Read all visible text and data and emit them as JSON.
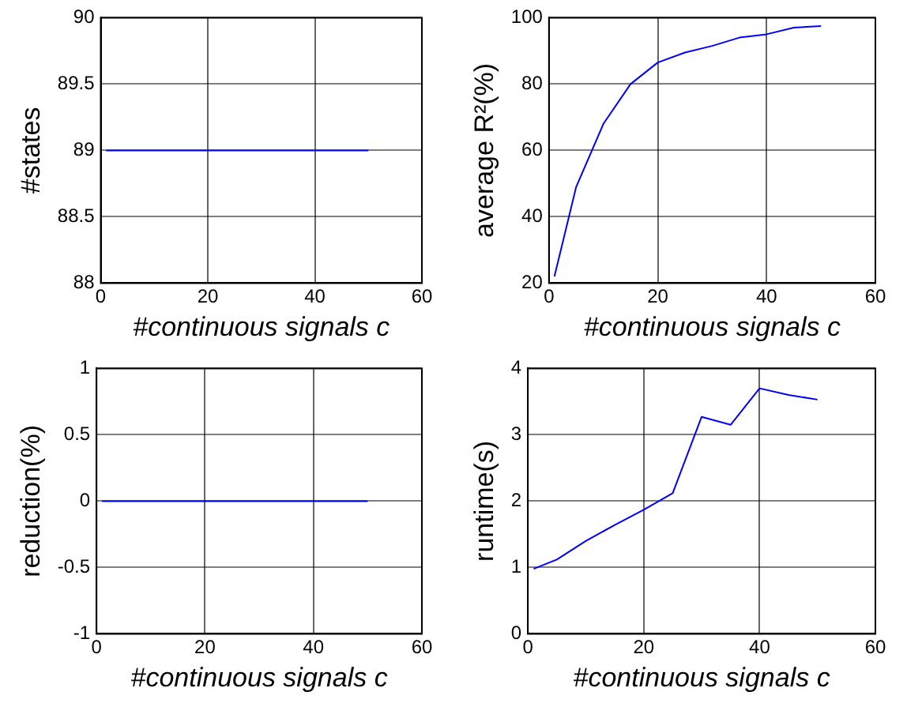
{
  "chart_data": [
    {
      "type": "line",
      "xlabel": "#continuous signals c",
      "ylabel": "#states",
      "x": [
        1,
        5,
        10,
        15,
        20,
        25,
        30,
        35,
        40,
        45,
        50
      ],
      "series": [
        {
          "color": "#0000ff",
          "values": [
            89,
            89,
            89,
            89,
            89,
            89,
            89,
            89,
            89,
            89,
            89
          ]
        }
      ],
      "xlim": [
        0,
        60
      ],
      "xticks": [
        0,
        20,
        40,
        60
      ],
      "ylim": [
        88,
        90
      ],
      "yticks": [
        88,
        88.5,
        89,
        89.5,
        90
      ],
      "grid": true,
      "legend": false
    },
    {
      "type": "line",
      "xlabel": "#continuous signals c",
      "ylabel": "average R²(%)",
      "x": [
        1,
        5,
        10,
        15,
        20,
        25,
        30,
        35,
        40,
        45,
        50
      ],
      "series": [
        {
          "color": "#0000ff",
          "values": [
            22,
            49,
            68,
            80,
            86.5,
            89.5,
            91.5,
            94,
            95,
            97,
            97.5
          ]
        }
      ],
      "xlim": [
        0,
        60
      ],
      "xticks": [
        0,
        20,
        40,
        60
      ],
      "ylim": [
        20,
        100
      ],
      "yticks": [
        20,
        40,
        60,
        80,
        100
      ],
      "grid": true,
      "legend": false
    },
    {
      "type": "line",
      "xlabel": "#continuous signals c",
      "ylabel": "reduction(%)",
      "x": [
        1,
        5,
        10,
        15,
        20,
        25,
        30,
        35,
        40,
        45,
        50
      ],
      "series": [
        {
          "color": "#0000ff",
          "values": [
            0,
            0,
            0,
            0,
            0,
            0,
            0,
            0,
            0,
            0,
            0
          ]
        }
      ],
      "xlim": [
        0,
        60
      ],
      "xticks": [
        0,
        20,
        40,
        60
      ],
      "ylim": [
        -1,
        1
      ],
      "yticks": [
        -1,
        -0.5,
        0,
        0.5,
        1
      ],
      "grid": true,
      "legend": false
    },
    {
      "type": "line",
      "xlabel": "#continuous signals c",
      "ylabel": "runtime(s)",
      "x": [
        1,
        5,
        10,
        15,
        20,
        25,
        30,
        35,
        40,
        45,
        50
      ],
      "series": [
        {
          "color": "#0000ff",
          "values": [
            0.98,
            1.12,
            1.4,
            1.64,
            1.87,
            2.12,
            3.27,
            3.15,
            3.7,
            3.6,
            3.53
          ]
        }
      ],
      "xlim": [
        0,
        60
      ],
      "xticks": [
        0,
        20,
        40,
        60
      ],
      "ylim": [
        0,
        4
      ],
      "yticks": [
        0,
        1,
        2,
        3,
        4
      ],
      "grid": true,
      "legend": false
    }
  ]
}
